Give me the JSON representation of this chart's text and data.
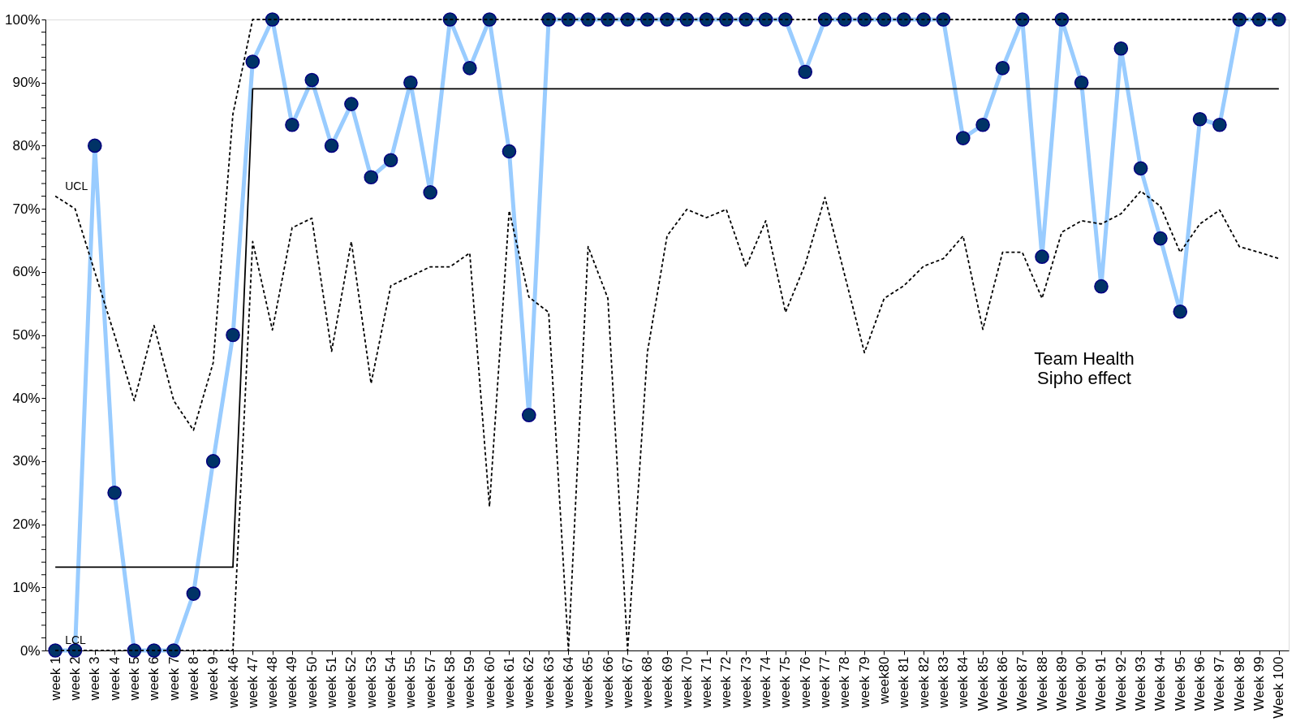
{
  "chart_data": {
    "type": "line",
    "categories": [
      "week 1",
      "week 2",
      "week 3",
      "week 4",
      "week 5",
      "week 6",
      "week 7",
      "week 8",
      "week 9",
      "week 46",
      "week 47",
      "week 48",
      "week 49",
      "week 50",
      "week 51",
      "week 52",
      "week 53",
      "week 54",
      "week 55",
      "week 57",
      "week 58",
      "week 59",
      "week 60",
      "week 61",
      "week 62",
      "week 63",
      "week 64",
      "week 65",
      "week 66",
      "week 67",
      "week 68",
      "week 69",
      "week 70",
      "week 71",
      "week 72",
      "week 73",
      "week 74",
      "week 75",
      "week 76",
      "week 77",
      "week 78",
      "week 79",
      "week80",
      "week 81",
      "week 82",
      "week 83",
      "week 84",
      "Week 85",
      "Week 86",
      "Week 87",
      "Week 88",
      "Week 89",
      "Week 90",
      "Week 91",
      "Week 92",
      "Week 93",
      "Week 94",
      "Week 95",
      "Week 96",
      "Week 97",
      "Week 98",
      "Week 99",
      "Week 100"
    ],
    "series": [
      {
        "color": "#99ccff",
        "marker": "circle",
        "line_style": "solid",
        "colors": [
          "#003366",
          "#003366",
          "#003366",
          "#003366",
          "#003366",
          "#003366",
          "#003366",
          "#003366",
          "#003366",
          "#003366",
          "#003366",
          "#003366",
          "#003366",
          "#003366",
          "#003366",
          "#003366",
          "#003366",
          "#003366",
          "#003366",
          "#003366",
          "#003366",
          "#003366",
          "#003366",
          "#003366",
          "#003366",
          "#003366",
          "#003366",
          "#003366",
          "#003366",
          "#003366",
          "#003366",
          "#003366",
          "#003366",
          "#003366",
          "#003366",
          "#003366",
          "#003366",
          "#003366",
          "#003366",
          "#003366",
          "#003366",
          "#003366",
          "#003366",
          "#003366",
          "#003366",
          "#003366",
          "#003366",
          "#003366",
          "#003366",
          "#003366",
          "#003366",
          "#003366",
          "#003366",
          "#003366",
          "#003366",
          "#003366",
          "#003366",
          "#003366",
          "#003366",
          "#003366",
          "#003366",
          "#003366",
          "#003366"
        ],
        "values": [
          0,
          0,
          80,
          25,
          0,
          0,
          0,
          9,
          30,
          50,
          93.3,
          100,
          83.3,
          90.4,
          80,
          86.6,
          75,
          77.7,
          90,
          72.6,
          100,
          92.3,
          100,
          79.1,
          37.3,
          100,
          100,
          100,
          100,
          100,
          100,
          100,
          100,
          100,
          100,
          100,
          100,
          100,
          91.7,
          100,
          100,
          100,
          100,
          100,
          100,
          100,
          81.2,
          83.3,
          92.3,
          100,
          62.4,
          100,
          90,
          57.7,
          95.4,
          76.4,
          65.3,
          53.7,
          84.2,
          83.3,
          100,
          100,
          100
        ]
      },
      {
        "color": "#000000",
        "marker": "none",
        "line_style": "solid",
        "values": [
          13.2,
          13.2,
          13.2,
          13.2,
          13.2,
          13.2,
          13.2,
          13.2,
          13.2,
          13.2,
          89,
          89,
          89,
          89,
          89,
          89,
          89,
          89,
          89,
          89,
          89,
          89,
          89,
          89,
          89,
          89,
          89,
          89,
          89,
          89,
          89,
          89,
          89,
          89,
          89,
          89,
          89,
          89,
          89,
          89,
          89,
          89,
          89,
          89,
          89,
          89,
          89,
          89,
          89,
          89,
          89,
          89,
          89,
          89,
          89,
          89,
          89,
          89,
          89,
          89,
          89,
          89,
          89
        ]
      },
      {
        "name": "UCL",
        "color": "#000000",
        "marker": "none",
        "line_style": "dashed",
        "values": [
          72,
          70,
          60,
          50,
          39.6,
          51.5,
          39.6,
          34.9,
          45.6,
          85,
          100,
          100,
          100,
          100,
          100,
          100,
          100,
          100,
          100,
          100,
          100,
          100,
          100,
          100,
          100,
          100,
          100,
          100,
          100,
          100,
          100,
          100,
          100,
          100,
          100,
          100,
          100,
          100,
          100,
          100,
          100,
          100,
          100,
          100,
          100,
          100,
          100,
          100,
          100,
          100,
          100,
          100,
          100,
          100,
          100,
          100,
          100,
          100,
          100,
          100,
          100,
          100,
          100
        ]
      },
      {
        "name": "LCL",
        "color": "#000000",
        "marker": "none",
        "line_style": "dashed",
        "values": [
          0,
          0,
          0,
          0,
          0,
          0,
          0,
          0,
          0,
          0,
          64.8,
          50.8,
          67,
          68.5,
          47.4,
          64.8,
          42.3,
          57.8,
          59.3,
          60.8,
          60.8,
          63,
          22.8,
          69.7,
          56,
          53.6,
          0,
          64,
          55.8,
          0,
          47.2,
          65.7,
          69.9,
          68.6,
          69.9,
          60.8,
          68.1,
          53.6,
          61.2,
          71.8,
          59.5,
          47.2,
          55.8,
          57.8,
          60.9,
          62.1,
          65.7,
          50.9,
          63.1,
          63.1,
          55.8,
          66.3,
          68.1,
          67.6,
          69.2,
          72.8,
          70.4,
          63.1,
          67.6,
          69.8,
          64,
          63.1,
          62.1
        ]
      }
    ],
    "ylim": [
      0,
      100
    ],
    "yticks": [
      {
        "value": 0,
        "label": "0%"
      },
      {
        "value": 2,
        "label": null
      },
      {
        "value": 4,
        "label": null
      },
      {
        "value": 6,
        "label": null
      },
      {
        "value": 8,
        "label": null
      },
      {
        "value": 10,
        "label": "10%"
      },
      {
        "value": 12,
        "label": null
      },
      {
        "value": 14,
        "label": null
      },
      {
        "value": 16,
        "label": null
      },
      {
        "value": 18,
        "label": null
      },
      {
        "value": 20,
        "label": "20%"
      },
      {
        "value": 22,
        "label": null
      },
      {
        "value": 24,
        "label": null
      },
      {
        "value": 26,
        "label": null
      },
      {
        "value": 28,
        "label": null
      },
      {
        "value": 30,
        "label": "30%"
      },
      {
        "value": 32,
        "label": null
      },
      {
        "value": 34,
        "label": null
      },
      {
        "value": 36,
        "label": null
      },
      {
        "value": 38,
        "label": null
      },
      {
        "value": 40,
        "label": "40%"
      },
      {
        "value": 42,
        "label": null
      },
      {
        "value": 44,
        "label": null
      },
      {
        "value": 46,
        "label": null
      },
      {
        "value": 48,
        "label": null
      },
      {
        "value": 50,
        "label": "50%"
      },
      {
        "value": 52,
        "label": null
      },
      {
        "value": 54,
        "label": null
      },
      {
        "value": 56,
        "label": null
      },
      {
        "value": 58,
        "label": null
      },
      {
        "value": 60,
        "label": "60%"
      },
      {
        "value": 62,
        "label": null
      },
      {
        "value": 64,
        "label": null
      },
      {
        "value": 66,
        "label": null
      },
      {
        "value": 68,
        "label": null
      },
      {
        "value": 70,
        "label": "70%"
      },
      {
        "value": 72,
        "label": null
      },
      {
        "value": 74,
        "label": null
      },
      {
        "value": 76,
        "label": null
      },
      {
        "value": 78,
        "label": null
      },
      {
        "value": 80,
        "label": "80%"
      },
      {
        "value": 82,
        "label": null
      },
      {
        "value": 84,
        "label": null
      },
      {
        "value": 86,
        "label": null
      },
      {
        "value": 88,
        "label": null
      },
      {
        "value": 90,
        "label": "90%"
      },
      {
        "value": 92,
        "label": null
      },
      {
        "value": 94,
        "label": null
      },
      {
        "value": 96,
        "label": null
      },
      {
        "value": 98,
        "label": null
      },
      {
        "value": 100,
        "label": "100%"
      }
    ],
    "grid": false,
    "annotations": [
      "Team Health\nSipho effect"
    ]
  }
}
